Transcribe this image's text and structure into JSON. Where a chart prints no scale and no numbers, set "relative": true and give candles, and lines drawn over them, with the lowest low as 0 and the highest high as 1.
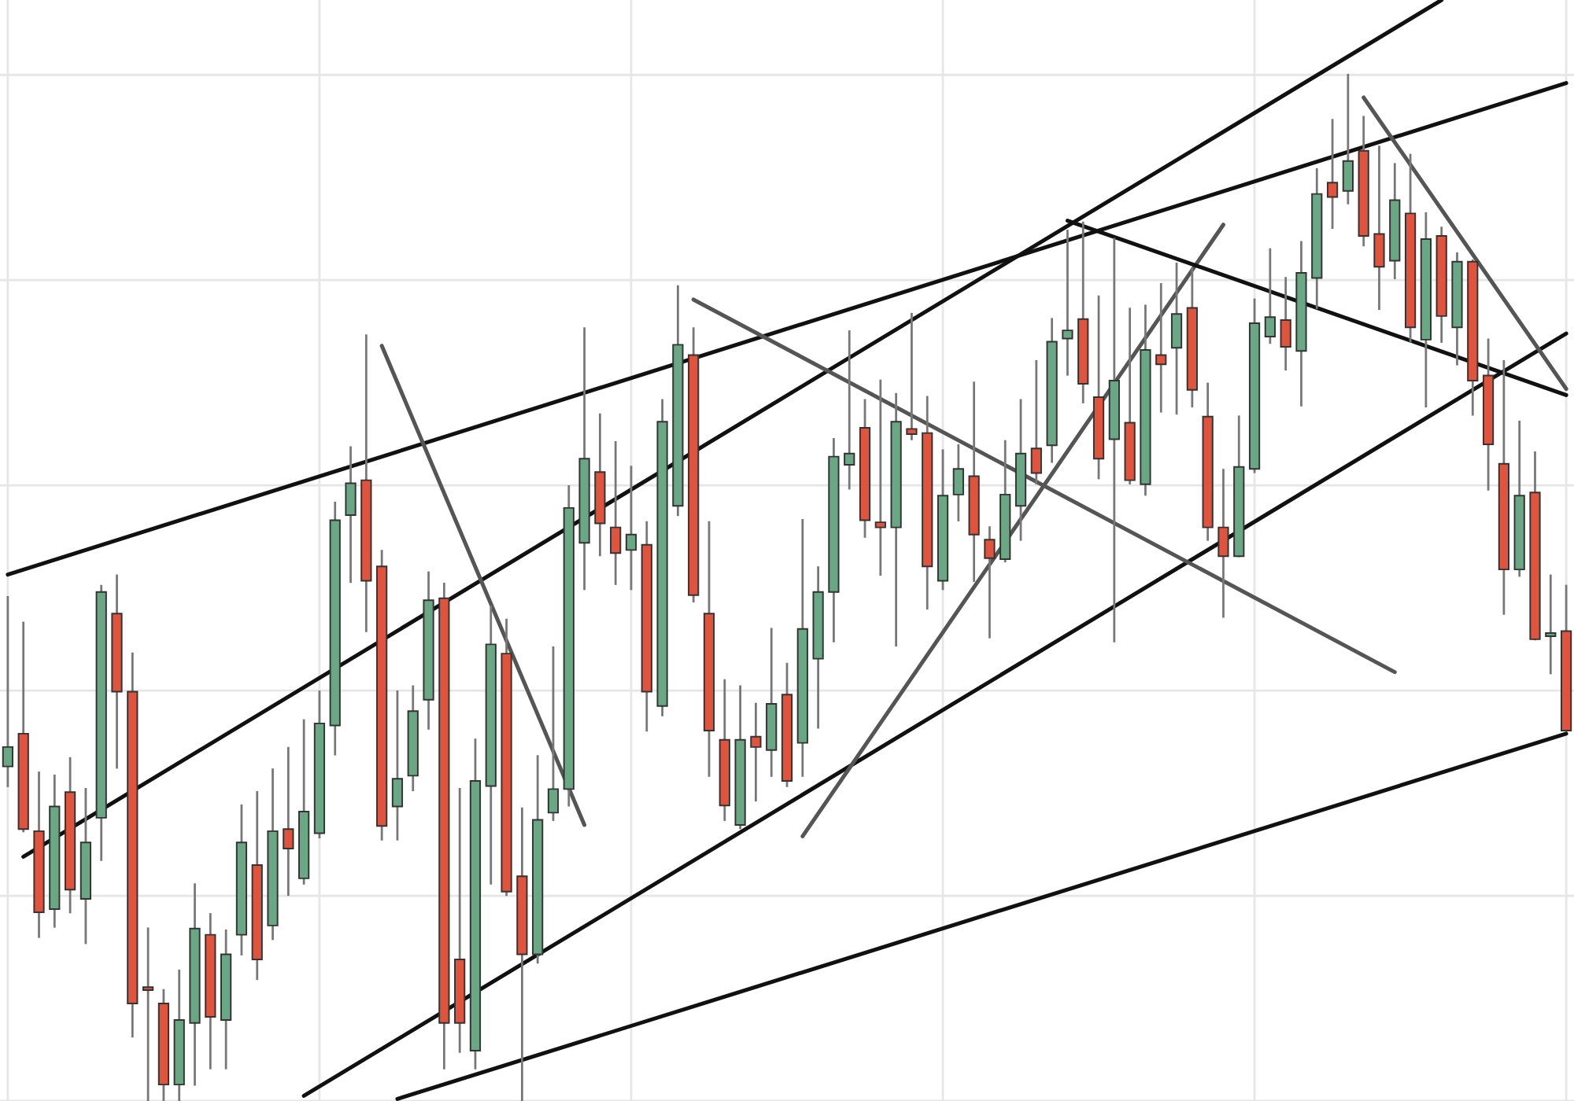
{
  "chart_data": {
    "type": "candlestick",
    "relative": true,
    "grid": true,
    "categories": [
      null,
      null,
      null,
      null,
      null,
      null,
      null,
      null,
      null,
      null,
      null,
      null,
      null,
      null,
      null,
      null,
      null,
      null,
      null,
      null,
      null,
      null,
      null,
      null,
      null,
      null,
      null,
      null,
      null,
      null,
      null,
      null,
      null,
      null,
      null,
      null,
      null,
      null,
      null,
      null,
      null,
      null,
      null,
      null,
      null,
      null,
      null,
      null,
      null,
      null,
      null,
      null,
      null,
      null,
      null,
      null,
      null,
      null,
      null,
      null,
      null,
      null,
      null,
      null,
      null,
      null,
      null,
      null,
      null,
      null,
      null,
      null,
      null,
      null,
      null,
      null,
      null,
      null,
      null,
      null,
      null,
      null,
      null,
      null,
      null,
      null,
      null,
      null,
      null,
      null,
      null,
      null,
      null,
      null,
      null,
      null,
      null,
      null,
      null,
      null,
      null
    ],
    "ohlc": [
      [
        0.326,
        0.491,
        0.307,
        0.345
      ],
      [
        0.358,
        0.466,
        0.263,
        0.265
      ],
      [
        0.263,
        0.32,
        0.16,
        0.184
      ],
      [
        0.187,
        0.317,
        0.17,
        0.287
      ],
      [
        0.301,
        0.334,
        0.184,
        0.206
      ],
      [
        0.197,
        0.304,
        0.154,
        0.252
      ],
      [
        0.276,
        0.502,
        0.235,
        0.496
      ],
      [
        0.475,
        0.512,
        0.325,
        0.399
      ],
      [
        0.399,
        0.436,
        0.063,
        0.095
      ],
      [
        0.111,
        0.168,
        0.0,
        0.108
      ],
      [
        0.095,
        0.108,
        0.0,
        0.016
      ],
      [
        0.016,
        0.127,
        0.0,
        0.079
      ],
      [
        0.076,
        0.211,
        0.016,
        0.168
      ],
      [
        0.162,
        0.182,
        0.032,
        0.082
      ],
      [
        0.079,
        0.166,
        0.032,
        0.143
      ],
      [
        0.162,
        0.288,
        0.143,
        0.252
      ],
      [
        0.23,
        0.301,
        0.119,
        0.138
      ],
      [
        0.171,
        0.323,
        0.158,
        0.263
      ],
      [
        0.265,
        0.344,
        0.201,
        0.246
      ],
      [
        0.217,
        0.371,
        0.212,
        0.282
      ],
      [
        0.261,
        0.399,
        0.257,
        0.368
      ],
      [
        0.366,
        0.583,
        0.338,
        0.566
      ],
      [
        0.571,
        0.637,
        0.506,
        0.602
      ],
      [
        0.605,
        0.746,
        0.458,
        0.507
      ],
      [
        0.521,
        0.536,
        0.255,
        0.268
      ],
      [
        0.287,
        0.399,
        0.255,
        0.314
      ],
      [
        0.317,
        0.404,
        0.303,
        0.38
      ],
      [
        0.391,
        0.515,
        0.363,
        0.488
      ],
      [
        0.49,
        0.504,
        0.032,
        0.076
      ],
      [
        0.138,
        0.304,
        0.048,
        0.076
      ],
      [
        0.049,
        0.352,
        0.032,
        0.312
      ],
      [
        0.307,
        0.482,
        0.212,
        0.445
      ],
      [
        0.436,
        0.469,
        0.201,
        0.204
      ],
      [
        0.219,
        0.285,
        0.0,
        0.143
      ],
      [
        0.143,
        0.336,
        0.135,
        0.274
      ],
      [
        0.281,
        0.442,
        0.274,
        0.304
      ],
      [
        0.304,
        0.599,
        0.288,
        0.578
      ],
      [
        0.544,
        0.753,
        0.499,
        0.626
      ],
      [
        0.613,
        0.669,
        0.532,
        0.563
      ],
      [
        0.559,
        0.642,
        0.504,
        0.534
      ],
      [
        0.537,
        0.618,
        0.499,
        0.552
      ],
      [
        0.542,
        0.564,
        0.361,
        0.399
      ],
      [
        0.385,
        0.683,
        0.376,
        0.662
      ],
      [
        0.58,
        0.794,
        0.571,
        0.737
      ],
      [
        0.727,
        0.753,
        0.487,
        0.493
      ],
      [
        0.475,
        0.564,
        0.317,
        0.361
      ],
      [
        0.352,
        0.41,
        0.274,
        0.288
      ],
      [
        0.269,
        0.404,
        0.266,
        0.352
      ],
      [
        0.355,
        0.387,
        0.293,
        0.345
      ],
      [
        0.342,
        0.46,
        0.317,
        0.387
      ],
      [
        0.396,
        0.426,
        0.307,
        0.312
      ],
      [
        0.349,
        0.566,
        0.317,
        0.46
      ],
      [
        0.431,
        0.52,
        0.364,
        0.496
      ],
      [
        0.496,
        0.645,
        0.448,
        0.628
      ],
      [
        0.62,
        0.75,
        0.597,
        0.631
      ],
      [
        0.656,
        0.683,
        0.55,
        0.566
      ],
      [
        0.564,
        0.702,
        0.513,
        0.559
      ],
      [
        0.559,
        0.689,
        0.444,
        0.662
      ],
      [
        0.655,
        0.767,
        0.645,
        0.65
      ],
      [
        0.651,
        0.686,
        0.48,
        0.521
      ],
      [
        0.507,
        0.634,
        0.499,
        0.59
      ],
      [
        0.591,
        0.639,
        0.566,
        0.616
      ],
      [
        0.609,
        0.7,
        0.507,
        0.552
      ],
      [
        0.547,
        0.559,
        0.452,
        0.529
      ],
      [
        0.528,
        0.643,
        0.526,
        0.591
      ],
      [
        0.58,
        0.683,
        0.547,
        0.631
      ],
      [
        0.636,
        0.721,
        0.602,
        0.612
      ],
      [
        0.639,
        0.762,
        0.623,
        0.74
      ],
      [
        0.743,
        0.848,
        0.708,
        0.751
      ],
      [
        0.762,
        0.856,
        0.681,
        0.699
      ],
      [
        0.686,
        0.784,
        0.607,
        0.626
      ],
      [
        0.645,
        0.84,
        0.448,
        0.702
      ],
      [
        0.661,
        0.772,
        0.602,
        0.605
      ],
      [
        0.601,
        0.775,
        0.591,
        0.732
      ],
      [
        0.727,
        0.796,
        0.672,
        0.718
      ],
      [
        0.734,
        0.816,
        0.67,
        0.767
      ],
      [
        0.773,
        0.811,
        0.677,
        0.693
      ],
      [
        0.667,
        0.699,
        0.547,
        0.559
      ],
      [
        0.559,
        0.615,
        0.472,
        0.531
      ],
      [
        0.531,
        0.667,
        0.531,
        0.618
      ],
      [
        0.616,
        0.781,
        0.613,
        0.758
      ],
      [
        0.745,
        0.83,
        0.739,
        0.764
      ],
      [
        0.761,
        0.802,
        0.713,
        0.735
      ],
      [
        0.731,
        0.837,
        0.678,
        0.807
      ],
      [
        0.802,
        0.908,
        0.773,
        0.884
      ],
      [
        0.895,
        0.956,
        0.851,
        0.881
      ],
      [
        0.887,
        1.0,
        0.875,
        0.916
      ],
      [
        0.926,
        0.959,
        0.834,
        0.843
      ],
      [
        0.845,
        0.93,
        0.772,
        0.813
      ],
      [
        0.819,
        0.913,
        0.802,
        0.878
      ],
      [
        0.865,
        0.922,
        0.74,
        0.754
      ],
      [
        0.742,
        0.865,
        0.677,
        0.84
      ],
      [
        0.843,
        0.851,
        0.74,
        0.765
      ],
      [
        0.754,
        0.826,
        0.718,
        0.818
      ],
      [
        0.818,
        0.819,
        0.669,
        0.702
      ],
      [
        0.707,
        0.742,
        0.596,
        0.64
      ],
      [
        0.621,
        0.721,
        0.475,
        0.518
      ],
      [
        0.518,
        0.662,
        0.512,
        0.59
      ],
      [
        0.593,
        0.632,
        0.45,
        0.45
      ],
      [
        0.453,
        0.512,
        0.417,
        0.456
      ],
      [
        0.458,
        0.502,
        0.361,
        0.361
      ]
    ],
    "colors": [
      "#6aa885",
      "#e0533d",
      "#e0533d",
      "#6aa885",
      "#e0533d",
      "#6aa885",
      "#6aa885",
      "#e0533d",
      "#e0533d",
      "#e0533d",
      "#e0533d",
      "#6aa885",
      "#6aa885",
      "#e0533d",
      "#6aa885",
      "#6aa885",
      "#e0533d",
      "#6aa885",
      "#e0533d",
      "#6aa885",
      "#6aa885",
      "#6aa885",
      "#6aa885",
      "#e0533d",
      "#e0533d",
      "#6aa885",
      "#6aa885",
      "#6aa885",
      "#e0533d",
      "#e0533d",
      "#6aa885",
      "#6aa885",
      "#e0533d",
      "#e0533d",
      "#6aa885",
      "#6aa885",
      "#6aa885",
      "#6aa885",
      "#e0533d",
      "#e0533d",
      "#6aa885",
      "#e0533d",
      "#6aa885",
      "#6aa885",
      "#e0533d",
      "#e0533d",
      "#e0533d",
      "#6aa885",
      "#e0533d",
      "#6aa885",
      "#e0533d",
      "#6aa885",
      "#6aa885",
      "#6aa885",
      "#6aa885",
      "#e0533d",
      "#e0533d",
      "#6aa885",
      "#e0533d",
      "#e0533d",
      "#6aa885",
      "#6aa885",
      "#e0533d",
      "#e0533d",
      "#6aa885",
      "#6aa885",
      "#e0533d",
      "#6aa885",
      "#6aa885",
      "#e0533d",
      "#e0533d",
      "#6aa885",
      "#e0533d",
      "#6aa885",
      "#e0533d",
      "#6aa885",
      "#e0533d",
      "#e0533d",
      "#e0533d",
      "#6aa885",
      "#6aa885",
      "#6aa885",
      "#e0533d",
      "#6aa885",
      "#6aa885",
      "#e0533d",
      "#6aa885",
      "#e0533d",
      "#e0533d",
      "#6aa885",
      "#e0533d",
      "#6aa885",
      "#e0533d",
      "#6aa885",
      "#e0533d",
      "#e0533d",
      "#e0533d",
      "#6aa885",
      "#e0533d",
      "#6aa885",
      "#e0533d"
    ],
    "series": [
      {
        "type": "line",
        "color": "#111111",
        "values": [
          0.513,
          null,
          null,
          null,
          null,
          null,
          null,
          null,
          null,
          null,
          null,
          null,
          null,
          null,
          null,
          null,
          null,
          null,
          null,
          null,
          null,
          null,
          null,
          null,
          null,
          null,
          null,
          null,
          null,
          null,
          null,
          null,
          null,
          null,
          null,
          null,
          null,
          null,
          null,
          null,
          null,
          null,
          null,
          null,
          null,
          null,
          null,
          null,
          null,
          null,
          null,
          null,
          null,
          null,
          null,
          null,
          null,
          null,
          null,
          null,
          null,
          null,
          null,
          null,
          null,
          null,
          null,
          null,
          null,
          null,
          null,
          null,
          null,
          null,
          null,
          null,
          null,
          null,
          null,
          null,
          null,
          null,
          null,
          null,
          null,
          null,
          null,
          null,
          null,
          null,
          null,
          null,
          null,
          null,
          null,
          null,
          null,
          null,
          null,
          null,
          0.992
        ]
      },
      {
        "type": "line",
        "color": "#111111",
        "values": [
          null,
          0.238,
          null,
          null,
          null,
          null,
          null,
          null,
          null,
          null,
          null,
          null,
          null,
          null,
          null,
          null,
          null,
          null,
          null,
          null,
          null,
          null,
          null,
          null,
          null,
          null,
          null,
          null,
          null,
          null,
          null,
          null,
          null,
          null,
          null,
          null,
          null,
          null,
          null,
          null,
          null,
          null,
          null,
          null,
          null,
          null,
          null,
          null,
          null,
          null,
          null,
          null,
          null,
          null,
          null,
          null,
          null,
          null,
          null,
          null,
          null,
          null,
          null,
          null,
          null,
          null,
          null,
          null,
          null,
          null,
          null,
          null,
          null,
          null,
          null,
          null,
          null,
          null,
          null,
          null,
          null,
          null,
          null,
          null,
          null,
          null,
          null,
          null,
          null,
          null,
          null,
          null,
          1.073,
          null,
          null,
          null,
          null,
          null,
          null,
          null,
          null
        ]
      },
      {
        "type": "line",
        "color": "#111111",
        "values": [
          null,
          null,
          null,
          null,
          null,
          null,
          null,
          null,
          null,
          null,
          null,
          null,
          null,
          null,
          null,
          null,
          null,
          null,
          null,
          0.005,
          null,
          null,
          null,
          null,
          null,
          null,
          null,
          null,
          null,
          null,
          null,
          null,
          null,
          null,
          null,
          null,
          null,
          null,
          null,
          null,
          null,
          null,
          null,
          null,
          null,
          null,
          null,
          null,
          null,
          null,
          null,
          null,
          null,
          null,
          null,
          null,
          null,
          null,
          null,
          null,
          null,
          null,
          null,
          null,
          null,
          null,
          null,
          null,
          null,
          null,
          null,
          null,
          null,
          null,
          null,
          null,
          null,
          null,
          null,
          null,
          null,
          null,
          null,
          null,
          null,
          null,
          null,
          null,
          null,
          null,
          null,
          null,
          null,
          null,
          null,
          null,
          null,
          null,
          null,
          null,
          0.748
        ]
      },
      {
        "type": "line",
        "color": "#111111",
        "values": [
          null,
          null,
          null,
          null,
          null,
          null,
          null,
          null,
          null,
          null,
          null,
          null,
          null,
          null,
          null,
          null,
          null,
          null,
          null,
          null,
          null,
          null,
          null,
          null,
          null,
          0.002,
          null,
          null,
          null,
          null,
          null,
          null,
          null,
          null,
          null,
          null,
          null,
          null,
          null,
          null,
          null,
          null,
          null,
          null,
          null,
          null,
          null,
          null,
          null,
          null,
          null,
          null,
          null,
          null,
          null,
          null,
          null,
          null,
          null,
          null,
          null,
          null,
          null,
          null,
          null,
          null,
          null,
          null,
          null,
          null,
          null,
          null,
          null,
          null,
          null,
          null,
          null,
          null,
          null,
          null,
          null,
          null,
          null,
          null,
          null,
          null,
          null,
          null,
          null,
          null,
          null,
          null,
          null,
          null,
          null,
          null,
          null,
          null,
          null,
          null,
          0.358
        ]
      },
      {
        "type": "line",
        "color": "#555555",
        "values": [
          null,
          null,
          null,
          null,
          null,
          null,
          null,
          null,
          null,
          null,
          null,
          null,
          null,
          null,
          null,
          null,
          null,
          null,
          null,
          null,
          null,
          null,
          null,
          null,
          0.736,
          null,
          null,
          null,
          null,
          null,
          null,
          null,
          null,
          null,
          null,
          null,
          null,
          0.269,
          null,
          null,
          null,
          null,
          null,
          null,
          null,
          null,
          null,
          null,
          null,
          null,
          null,
          null,
          null,
          null,
          null,
          null,
          null,
          null,
          null,
          null,
          null,
          null,
          null,
          null,
          null,
          null,
          null,
          null,
          null,
          null,
          null,
          null,
          null,
          null,
          null,
          null,
          null,
          null,
          null,
          null,
          null,
          null,
          null,
          null,
          null,
          null,
          null,
          null,
          null,
          null,
          null,
          null,
          null,
          null,
          null,
          null,
          null,
          null,
          null,
          null,
          null
        ]
      },
      {
        "type": "line",
        "color": "#555555",
        "values": [
          null,
          null,
          null,
          null,
          null,
          null,
          null,
          null,
          null,
          null,
          null,
          null,
          null,
          null,
          null,
          null,
          null,
          null,
          null,
          null,
          null,
          null,
          null,
          null,
          null,
          null,
          null,
          null,
          null,
          null,
          null,
          null,
          null,
          null,
          null,
          null,
          null,
          null,
          null,
          null,
          null,
          null,
          null,
          null,
          0.781,
          null,
          null,
          null,
          null,
          null,
          null,
          null,
          null,
          null,
          null,
          null,
          null,
          null,
          null,
          null,
          null,
          null,
          null,
          null,
          null,
          null,
          null,
          null,
          null,
          null,
          null,
          null,
          null,
          null,
          null,
          null,
          null,
          null,
          null,
          null,
          null,
          null,
          null,
          null,
          null,
          null,
          null,
          null,
          null,
          0.418,
          null,
          null,
          null,
          null,
          null,
          null,
          null,
          null,
          null,
          null,
          null
        ]
      },
      {
        "type": "line",
        "color": "#555555",
        "values": [
          null,
          null,
          null,
          null,
          null,
          null,
          null,
          null,
          null,
          null,
          null,
          null,
          null,
          null,
          null,
          null,
          null,
          null,
          null,
          null,
          null,
          null,
          null,
          null,
          null,
          null,
          null,
          null,
          null,
          null,
          null,
          null,
          null,
          null,
          null,
          null,
          null,
          null,
          null,
          null,
          null,
          null,
          null,
          null,
          null,
          null,
          null,
          null,
          null,
          null,
          null,
          0.258,
          null,
          null,
          null,
          null,
          null,
          null,
          null,
          null,
          null,
          null,
          null,
          null,
          null,
          null,
          null,
          null,
          null,
          null,
          null,
          null,
          null,
          null,
          null,
          null,
          null,
          null,
          0.854,
          null,
          null,
          null,
          null,
          null,
          null,
          null,
          null,
          null,
          null,
          null,
          null,
          null,
          null,
          null,
          null,
          null,
          null,
          null,
          null,
          null,
          null
        ]
      },
      {
        "type": "line",
        "color": "#111111",
        "values": [
          null,
          null,
          null,
          null,
          null,
          null,
          null,
          null,
          null,
          null,
          null,
          null,
          null,
          null,
          null,
          null,
          null,
          null,
          null,
          null,
          null,
          null,
          null,
          null,
          null,
          null,
          null,
          null,
          null,
          null,
          null,
          null,
          null,
          null,
          null,
          null,
          null,
          null,
          null,
          null,
          null,
          null,
          null,
          null,
          null,
          null,
          null,
          null,
          null,
          null,
          null,
          null,
          null,
          null,
          null,
          null,
          null,
          null,
          null,
          null,
          null,
          null,
          null,
          null,
          null,
          null,
          null,
          null,
          0.858,
          null,
          null,
          null,
          null,
          null,
          null,
          null,
          null,
          null,
          null,
          null,
          null,
          null,
          null,
          null,
          null,
          null,
          null,
          null,
          null,
          null,
          null,
          null,
          null,
          null,
          null,
          null,
          null,
          null,
          null,
          null,
          0.688
        ]
      },
      {
        "type": "line",
        "color": "#555555",
        "values": [
          null,
          null,
          null,
          null,
          null,
          null,
          null,
          null,
          null,
          null,
          null,
          null,
          null,
          null,
          null,
          null,
          null,
          null,
          null,
          null,
          null,
          null,
          null,
          null,
          null,
          null,
          null,
          null,
          null,
          null,
          null,
          null,
          null,
          null,
          null,
          null,
          null,
          null,
          null,
          null,
          null,
          null,
          null,
          null,
          null,
          null,
          null,
          null,
          null,
          null,
          null,
          null,
          null,
          null,
          null,
          null,
          null,
          null,
          null,
          null,
          null,
          null,
          null,
          null,
          null,
          null,
          null,
          null,
          null,
          null,
          null,
          null,
          null,
          null,
          null,
          null,
          null,
          null,
          null,
          null,
          null,
          null,
          null,
          null,
          null,
          null,
          null,
          0.978,
          null,
          null,
          null,
          null,
          null,
          null,
          null,
          null,
          null,
          null,
          null,
          null,
          0.694
        ]
      }
    ]
  }
}
